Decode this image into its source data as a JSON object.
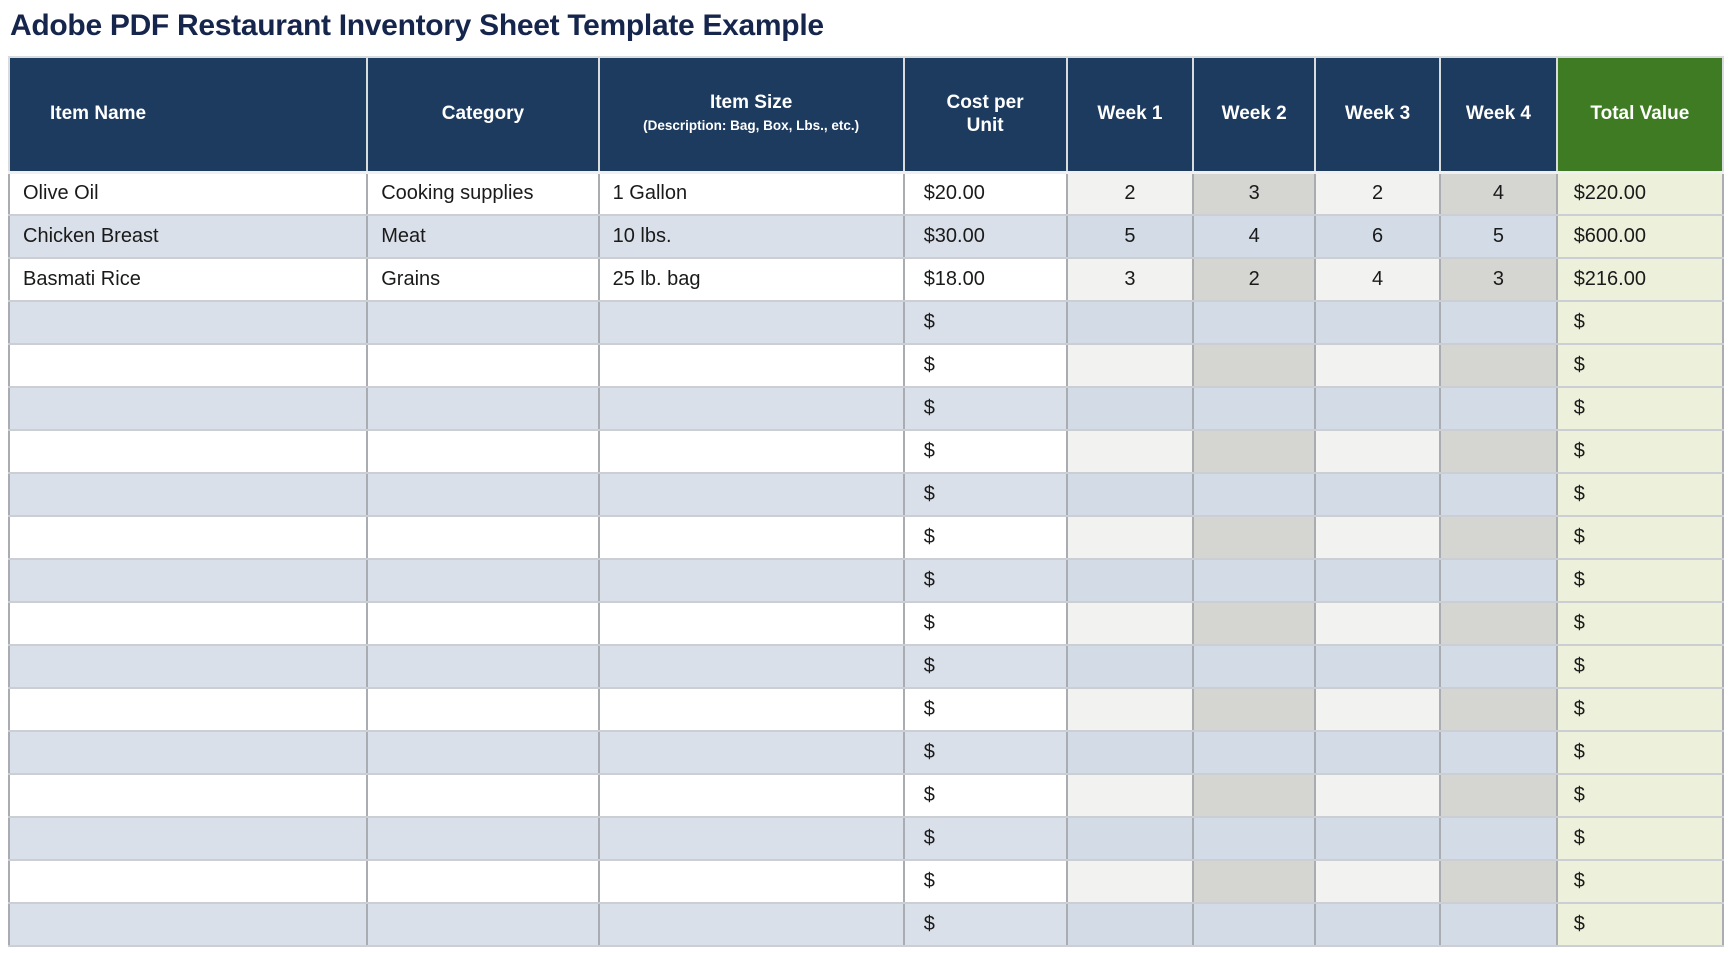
{
  "title": "Adobe PDF Restaurant Inventory Sheet Template Example",
  "table": {
    "columns": [
      {
        "key": "item",
        "label": "Item Name"
      },
      {
        "key": "category",
        "label": "Category"
      },
      {
        "key": "size",
        "label": "Item Size",
        "sublabel": "(Description: Bag, Box, Lbs., etc.)"
      },
      {
        "key": "cost",
        "label": "Cost per Unit"
      },
      {
        "key": "w1",
        "label": "Week 1"
      },
      {
        "key": "w2",
        "label": "Week 2"
      },
      {
        "key": "w3",
        "label": "Week 3"
      },
      {
        "key": "w4",
        "label": "Week 4"
      },
      {
        "key": "total",
        "label": "Total Value"
      }
    ],
    "rows": [
      {
        "item": "Olive Oil",
        "category": "Cooking supplies",
        "size": "1 Gallon",
        "cost": "$20.00",
        "w1": "2",
        "w2": "3",
        "w3": "2",
        "w4": "4",
        "total": "$220.00"
      },
      {
        "item": "Chicken Breast",
        "category": "Meat",
        "size": "10 lbs.",
        "cost": "$30.00",
        "w1": "5",
        "w2": "4",
        "w3": "6",
        "w4": "5",
        "total": "$600.00"
      },
      {
        "item": "Basmati Rice",
        "category": "Grains",
        "size": "25 lb. bag",
        "cost": "$18.00",
        "w1": "3",
        "w2": "2",
        "w3": "4",
        "w4": "3",
        "total": "$216.00"
      },
      {
        "item": "",
        "category": "",
        "size": "",
        "cost": "$",
        "w1": "",
        "w2": "",
        "w3": "",
        "w4": "",
        "total": "$"
      },
      {
        "item": "",
        "category": "",
        "size": "",
        "cost": "$",
        "w1": "",
        "w2": "",
        "w3": "",
        "w4": "",
        "total": "$"
      },
      {
        "item": "",
        "category": "",
        "size": "",
        "cost": "$",
        "w1": "",
        "w2": "",
        "w3": "",
        "w4": "",
        "total": "$"
      },
      {
        "item": "",
        "category": "",
        "size": "",
        "cost": "$",
        "w1": "",
        "w2": "",
        "w3": "",
        "w4": "",
        "total": "$"
      },
      {
        "item": "",
        "category": "",
        "size": "",
        "cost": "$",
        "w1": "",
        "w2": "",
        "w3": "",
        "w4": "",
        "total": "$"
      },
      {
        "item": "",
        "category": "",
        "size": "",
        "cost": "$",
        "w1": "",
        "w2": "",
        "w3": "",
        "w4": "",
        "total": "$"
      },
      {
        "item": "",
        "category": "",
        "size": "",
        "cost": "$",
        "w1": "",
        "w2": "",
        "w3": "",
        "w4": "",
        "total": "$"
      },
      {
        "item": "",
        "category": "",
        "size": "",
        "cost": "$",
        "w1": "",
        "w2": "",
        "w3": "",
        "w4": "",
        "total": "$"
      },
      {
        "item": "",
        "category": "",
        "size": "",
        "cost": "$",
        "w1": "",
        "w2": "",
        "w3": "",
        "w4": "",
        "total": "$"
      },
      {
        "item": "",
        "category": "",
        "size": "",
        "cost": "$",
        "w1": "",
        "w2": "",
        "w3": "",
        "w4": "",
        "total": "$"
      },
      {
        "item": "",
        "category": "",
        "size": "",
        "cost": "$",
        "w1": "",
        "w2": "",
        "w3": "",
        "w4": "",
        "total": "$"
      },
      {
        "item": "",
        "category": "",
        "size": "",
        "cost": "$",
        "w1": "",
        "w2": "",
        "w3": "",
        "w4": "",
        "total": "$"
      },
      {
        "item": "",
        "category": "",
        "size": "",
        "cost": "$",
        "w1": "",
        "w2": "",
        "w3": "",
        "w4": "",
        "total": "$"
      },
      {
        "item": "",
        "category": "",
        "size": "",
        "cost": "$",
        "w1": "",
        "w2": "",
        "w3": "",
        "w4": "",
        "total": "$"
      },
      {
        "item": "",
        "category": "",
        "size": "",
        "cost": "$",
        "w1": "",
        "w2": "",
        "w3": "",
        "w4": "",
        "total": "$"
      }
    ]
  },
  "colors": {
    "header_bg": "#1D3A5F",
    "header_text": "#FFFFFF",
    "total_header_bg": "#3E7B22",
    "alt_row_bg": "#D9E0EA",
    "alt_row_week_bg": "#D2DBE6",
    "week_shade_light": "#F2F2F0",
    "week_shade_dark": "#D5D5D1",
    "total_column_bg": "#EDF0DB",
    "title_color": "#15254C",
    "body_text": "#1A1A1A"
  }
}
